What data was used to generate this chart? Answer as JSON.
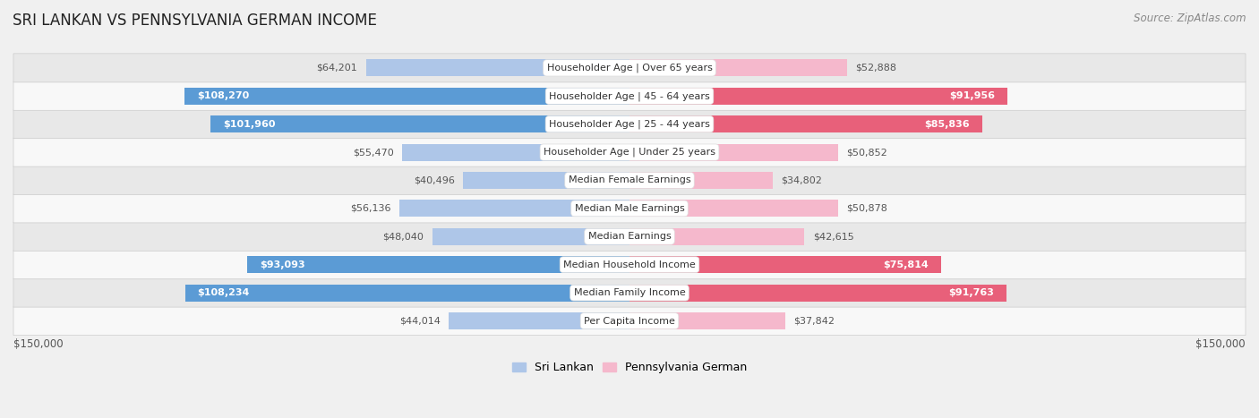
{
  "title": "SRI LANKAN VS PENNSYLVANIA GERMAN INCOME",
  "source": "Source: ZipAtlas.com",
  "categories": [
    "Per Capita Income",
    "Median Family Income",
    "Median Household Income",
    "Median Earnings",
    "Median Male Earnings",
    "Median Female Earnings",
    "Householder Age | Under 25 years",
    "Householder Age | 25 - 44 years",
    "Householder Age | 45 - 64 years",
    "Householder Age | Over 65 years"
  ],
  "sri_lankan": [
    44014,
    108234,
    93093,
    48040,
    56136,
    40496,
    55470,
    101960,
    108270,
    64201
  ],
  "penn_german": [
    37842,
    91763,
    75814,
    42615,
    50878,
    34802,
    50852,
    85836,
    91956,
    52888
  ],
  "max_val": 150000,
  "sri_lankan_light": "#aec6e8",
  "sri_lankan_dark": "#5b9bd5",
  "penn_german_light": "#f5b8cc",
  "penn_german_dark": "#e8607a",
  "bg_color": "#f0f0f0",
  "row_light": "#f8f8f8",
  "row_dark": "#e8e8e8",
  "x_label_left": "$150,000",
  "x_label_right": "$150,000",
  "legend_sri_lankan": "Sri Lankan",
  "legend_penn_german": "Pennsylvania German",
  "title_fontsize": 12,
  "source_fontsize": 8.5,
  "label_fontsize": 8,
  "cat_fontsize": 8,
  "bar_height": 0.6,
  "white_threshold_sl": 65000,
  "white_threshold_pg": 65000
}
